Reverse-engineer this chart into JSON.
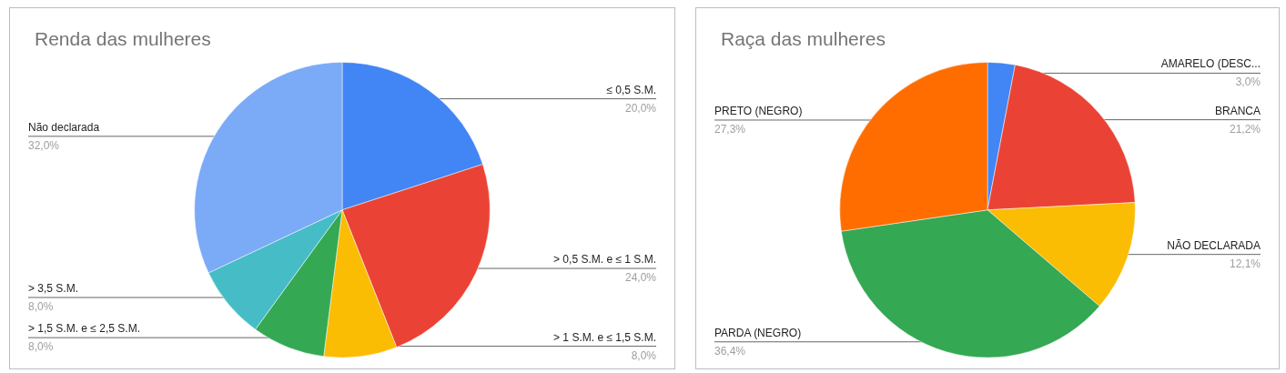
{
  "chart_data": [
    {
      "type": "pie",
      "title": "Renda das mulheres",
      "categories": [
        "≤ 0,5 S.M.",
        "> 0,5 S.M. e ≤ 1 S.M.",
        "> 1 S.M. e ≤ 1,5 S.M.",
        "> 1,5 S.M. e ≤ 2,5 S.M.",
        "> 3,5 S.M.",
        "Não declarada"
      ],
      "values": [
        20,
        24,
        8,
        8,
        8,
        32
      ],
      "value_labels": [
        "20,0%",
        "24,0%",
        "8,0%",
        "8,0%",
        "8,0%",
        "32,0%"
      ],
      "colors": [
        "#4285f4",
        "#ea4335",
        "#fbbc04",
        "#34a853",
        "#46bdc6",
        "#7baaf7"
      ],
      "legend": false
    },
    {
      "type": "pie",
      "title": "Raça das mulheres",
      "categories": [
        "AMARELO (DESC...",
        "BRANCA",
        "NÃO DECLARADA",
        "PARDA (NEGRO)",
        "PRETO (NEGRO)"
      ],
      "values": [
        3.0,
        21.2,
        12.1,
        36.4,
        27.3
      ],
      "value_labels": [
        "3,0%",
        "21,2%",
        "12,1%",
        "36,4%",
        "27,3%"
      ],
      "colors": [
        "#4285f4",
        "#ea4335",
        "#fbbc04",
        "#34a853",
        "#ff6d01"
      ],
      "legend": false
    }
  ]
}
